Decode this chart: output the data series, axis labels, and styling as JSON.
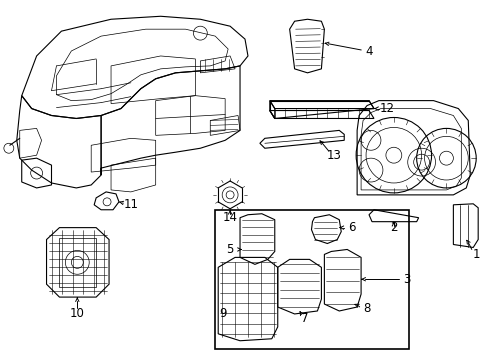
{
  "background_color": "#ffffff",
  "line_color": "#000000",
  "text_color": "#000000",
  "fig_width": 4.89,
  "fig_height": 3.6,
  "dpi": 100,
  "font_size": 8.5
}
